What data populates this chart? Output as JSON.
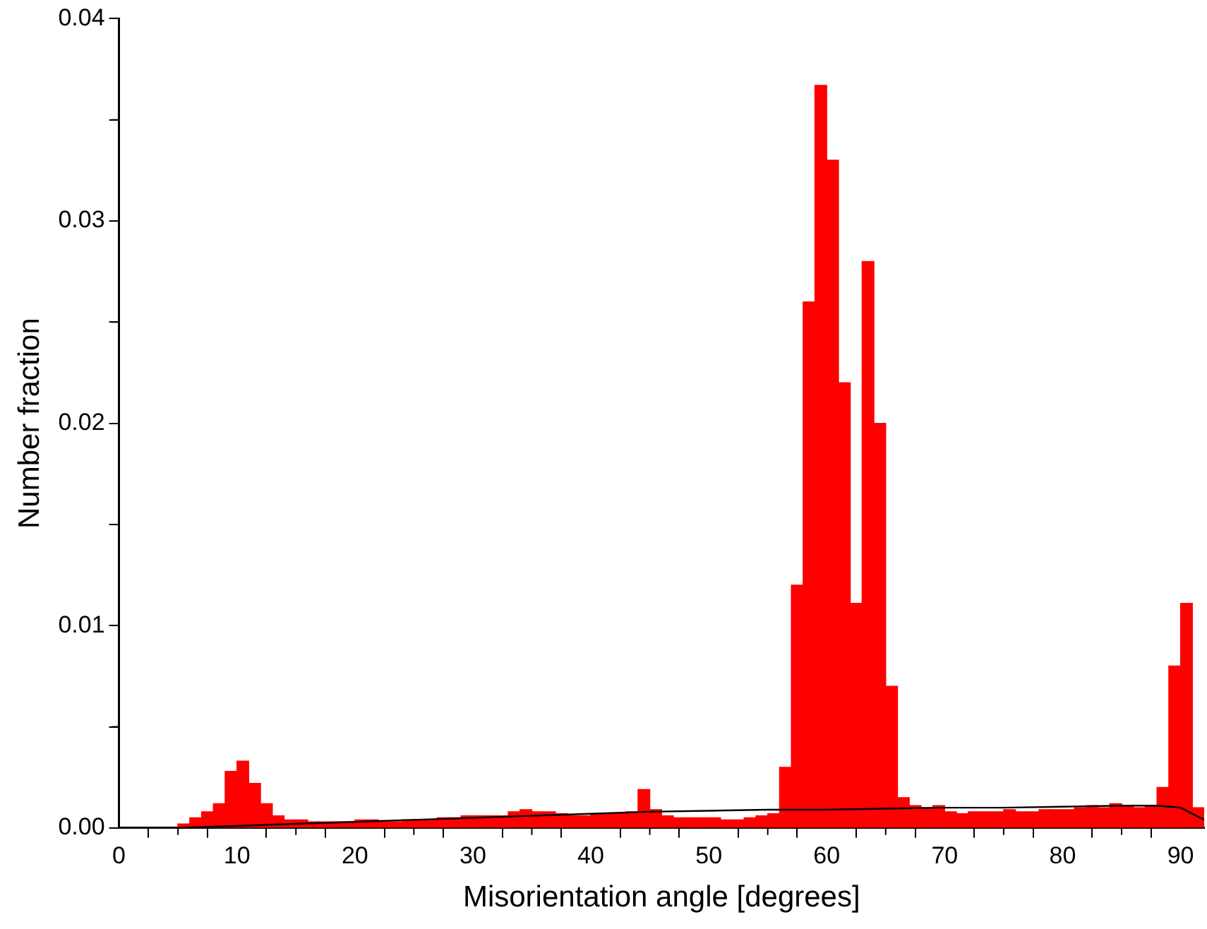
{
  "chart_data": {
    "type": "histogram",
    "xlabel": "Misorientation angle [degrees]",
    "ylabel": "Number fraction",
    "bins": [
      0,
      1,
      2,
      3,
      4,
      5,
      6,
      7,
      8,
      9,
      10,
      11,
      12,
      13,
      14,
      15,
      16,
      17,
      18,
      19,
      20,
      21,
      22,
      23,
      24,
      25,
      26,
      27,
      28,
      29,
      30,
      31,
      32,
      33,
      34,
      35,
      36,
      37,
      38,
      39,
      40,
      41,
      42,
      43,
      44,
      45,
      46,
      47,
      48,
      49,
      50,
      51,
      52,
      53,
      54,
      55,
      56,
      57,
      58,
      59,
      60,
      61,
      62,
      63,
      64,
      65,
      66,
      67,
      68,
      69,
      70,
      71,
      72,
      73,
      74,
      75,
      76,
      77,
      78,
      79,
      80,
      81,
      82,
      83,
      84,
      85,
      86,
      87,
      88,
      89,
      90,
      91,
      92
    ],
    "series": [
      {
        "type": "histogram",
        "color": "#ff0000",
        "values": [
          0,
          0,
          0,
          0,
          0,
          0.0002,
          0.0005,
          0.0008,
          0.0012,
          0.0028,
          0.0033,
          0.0022,
          0.0012,
          0.0006,
          0.0004,
          0.0004,
          0.0003,
          0.0003,
          0.0003,
          0.0003,
          0.0004,
          0.0004,
          0.0003,
          0.0003,
          0.0004,
          0.0004,
          0.0004,
          0.0005,
          0.0005,
          0.0006,
          0.0006,
          0.0006,
          0.0006,
          0.0008,
          0.0009,
          0.0008,
          0.0008,
          0.0007,
          0.0006,
          0.0006,
          0.0007,
          0.0007,
          0.0007,
          0.0008,
          0.0019,
          0.0009,
          0.0006,
          0.0005,
          0.0005,
          0.0005,
          0.0005,
          0.0004,
          0.0004,
          0.0005,
          0.0006,
          0.0007,
          0.003,
          0.012,
          0.026,
          0.0367,
          0.033,
          0.022,
          0.0111,
          0.028,
          0.02,
          0.007,
          0.0015,
          0.0011,
          0.001,
          0.0011,
          0.0008,
          0.0007,
          0.0008,
          0.0008,
          0.0008,
          0.0009,
          0.0008,
          0.0008,
          0.0009,
          0.0009,
          0.0009,
          0.001,
          0.0011,
          0.001,
          0.0012,
          0.0011,
          0.001,
          0.0011,
          0.002,
          0.008,
          0.0111,
          0.001
        ]
      },
      {
        "type": "line",
        "color": "#000000",
        "x": [
          0,
          5,
          10,
          15,
          20,
          25,
          30,
          35,
          40,
          45,
          50,
          55,
          60,
          65,
          70,
          75,
          80,
          85,
          88,
          90,
          92
        ],
        "values": [
          0,
          0,
          0.0001,
          0.0002,
          0.0003,
          0.0004,
          0.0005,
          0.0006,
          0.0007,
          0.0008,
          0.00085,
          0.0009,
          0.0009,
          0.00095,
          0.001,
          0.001,
          0.00105,
          0.0011,
          0.0011,
          0.001,
          0.0004
        ]
      }
    ],
    "xlim": [
      0,
      92
    ],
    "xticks": [
      0,
      {
        "value": 5,
        "label": null
      },
      10,
      {
        "value": 15,
        "label": null
      },
      20,
      {
        "value": 25,
        "label": null
      },
      30,
      {
        "value": 35,
        "label": null
      },
      40,
      {
        "value": 45,
        "label": null
      },
      50,
      {
        "value": 55,
        "label": null
      },
      60,
      {
        "value": 65,
        "label": null
      },
      70,
      {
        "value": 75,
        "label": null
      },
      80,
      {
        "value": 85,
        "label": null
      },
      90
    ],
    "ylim": [
      0,
      0.04
    ],
    "yticks": [
      {
        "value": 0,
        "label": "0.00"
      },
      {
        "value": 0.005,
        "label": null
      },
      {
        "value": 0.01,
        "label": "0.01"
      },
      {
        "value": 0.015,
        "label": null
      },
      {
        "value": 0.02,
        "label": "0.02"
      },
      {
        "value": 0.025,
        "label": null
      },
      {
        "value": 0.03,
        "label": "0.03"
      },
      {
        "value": 0.035,
        "label": null
      },
      {
        "value": 0.04,
        "label": "0.04"
      }
    ],
    "grid": false,
    "legend": false
  }
}
